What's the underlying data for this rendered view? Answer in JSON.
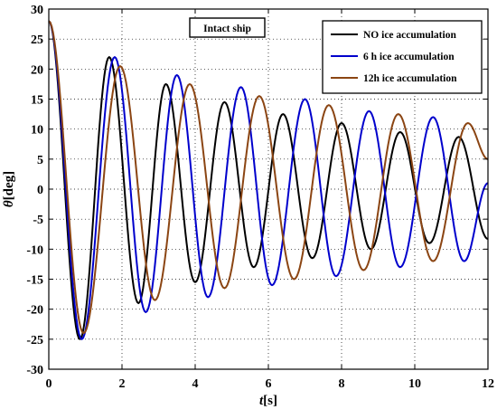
{
  "chart_data": {
    "type": "line",
    "title": "",
    "annotation": "Intact ship",
    "xlabel": {
      "symbol": "t",
      "unit": "[s]"
    },
    "ylabel": {
      "symbol": "θ",
      "unit": "[deg]"
    },
    "xlim": [
      0,
      12
    ],
    "ylim": [
      -30,
      30
    ],
    "xticks": [
      0,
      2,
      4,
      6,
      8,
      10,
      12
    ],
    "yticks": [
      -30,
      -25,
      -20,
      -15,
      -10,
      -5,
      0,
      5,
      10,
      15,
      20,
      25,
      30
    ],
    "grid": true,
    "legend_position": "top-right",
    "series": [
      {
        "name": "NO ice accumulation",
        "color": "#000000",
        "peaks": [
          [
            0,
            28
          ],
          [
            0.85,
            -25
          ],
          [
            1.65,
            22
          ],
          [
            2.45,
            -19
          ],
          [
            3.2,
            17.5
          ],
          [
            4.0,
            -15.5
          ],
          [
            4.8,
            14.5
          ],
          [
            5.6,
            -13
          ],
          [
            6.4,
            12.5
          ],
          [
            7.2,
            -11.5
          ],
          [
            8.0,
            11
          ],
          [
            8.8,
            -10
          ],
          [
            9.6,
            9.5
          ],
          [
            10.4,
            -9
          ],
          [
            11.2,
            8.7
          ],
          [
            12,
            -8.3
          ]
        ]
      },
      {
        "name": "6 h ice accumulation",
        "color": "#0000cc",
        "peaks": [
          [
            0,
            28
          ],
          [
            0.9,
            -25
          ],
          [
            1.8,
            22
          ],
          [
            2.65,
            -20.5
          ],
          [
            3.5,
            19
          ],
          [
            4.35,
            -18
          ],
          [
            5.25,
            17
          ],
          [
            6.1,
            -16
          ],
          [
            7.0,
            15
          ],
          [
            7.85,
            -14.5
          ],
          [
            8.75,
            13
          ],
          [
            9.6,
            -13
          ],
          [
            10.5,
            12
          ],
          [
            11.35,
            -12
          ],
          [
            12,
            1
          ]
        ]
      },
      {
        "name": "12h ice accumulation",
        "color": "#8b4513",
        "peaks": [
          [
            0,
            28
          ],
          [
            0.95,
            -24
          ],
          [
            1.95,
            20.5
          ],
          [
            2.9,
            -18.5
          ],
          [
            3.85,
            17.5
          ],
          [
            4.8,
            -16.5
          ],
          [
            5.75,
            15.5
          ],
          [
            6.7,
            -15
          ],
          [
            7.65,
            14
          ],
          [
            8.6,
            -13.5
          ],
          [
            9.55,
            12.5
          ],
          [
            10.5,
            -12
          ],
          [
            11.45,
            11
          ],
          [
            12,
            5
          ]
        ]
      }
    ]
  }
}
